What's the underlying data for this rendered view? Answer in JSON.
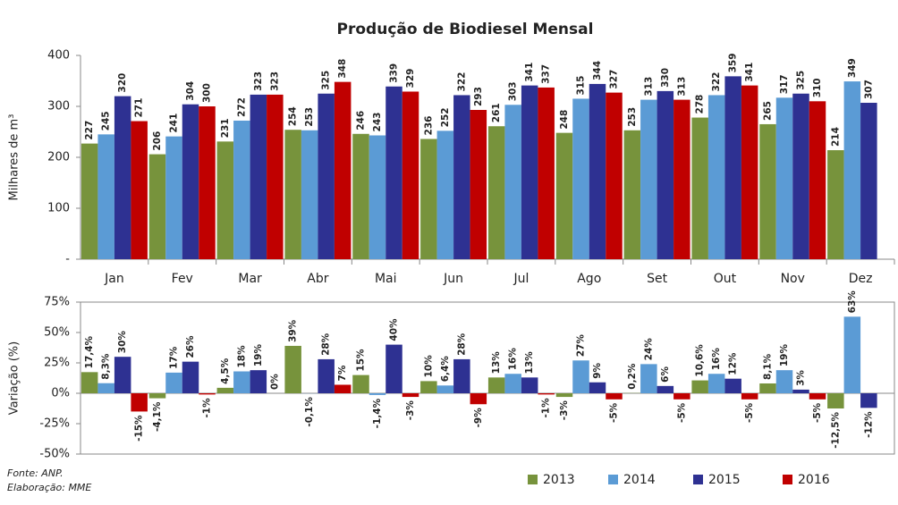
{
  "chart_data": [
    {
      "type": "bar",
      "title": "Produção de Biodiesel Mensal",
      "y_label": "Milhares de m³",
      "categories": [
        "Jan",
        "Fev",
        "Mar",
        "Abr",
        "Mai",
        "Jun",
        "Jul",
        "Ago",
        "Set",
        "Out",
        "Nov",
        "Dez"
      ],
      "series": [
        {
          "name": "2013",
          "color": "#77933c",
          "values": [
            227,
            206,
            231,
            254,
            246,
            236,
            261,
            248,
            253,
            278,
            265,
            214
          ]
        },
        {
          "name": "2014",
          "color": "#5b9bd5",
          "values": [
            245,
            241,
            272,
            253,
            243,
            252,
            303,
            315,
            313,
            322,
            317,
            349
          ]
        },
        {
          "name": "2015",
          "color": "#2e3192",
          "values": [
            320,
            304,
            323,
            325,
            339,
            322,
            341,
            344,
            330,
            359,
            325,
            307
          ]
        },
        {
          "name": "2016",
          "color": "#c00000",
          "values": [
            271,
            300,
            323,
            348,
            329,
            293,
            337,
            327,
            313,
            341,
            310,
            null
          ]
        }
      ],
      "ylim": [
        0,
        400
      ],
      "yticks": [
        {
          "value": 0,
          "label": "-"
        },
        100,
        200,
        300,
        400
      ],
      "legend": "bottom"
    },
    {
      "type": "bar",
      "y_label": "Variação (%)",
      "series": [
        {
          "values": [
            17.4,
            -4.1,
            4.5,
            39,
            15,
            10,
            13,
            -3,
            0.2,
            10.6,
            8.1,
            -12.5
          ],
          "value_labels": [
            "17,4%",
            "-4,1%",
            "4,5%",
            "39%",
            "15%",
            "10%",
            "13%",
            "-3%",
            "0,2%",
            "10,6%",
            "8,1%",
            "-12,5%"
          ]
        },
        {
          "values": [
            8.3,
            17,
            18,
            -0.1,
            -1.4,
            6.4,
            16,
            27,
            24,
            16,
            19,
            63
          ],
          "value_labels": [
            "8,3%",
            "17%",
            "18%",
            "-0,1%",
            "-1,4%",
            "6,4%",
            "16%",
            "27%",
            "24%",
            "16%",
            "19%",
            "63%"
          ]
        },
        {
          "values": [
            30,
            26,
            19,
            28,
            40,
            28,
            13,
            9,
            6,
            12,
            3,
            -12
          ],
          "value_labels": [
            "30%",
            "26%",
            "19%",
            "28%",
            "40%",
            "28%",
            "13%",
            "9%",
            "6%",
            "12%",
            "3%",
            "-12%"
          ]
        },
        {
          "values": [
            -15,
            -1,
            0,
            7,
            -3,
            -9,
            -1,
            -5,
            -5,
            -5,
            -5,
            null
          ],
          "value_labels": [
            "-15%",
            "-1%",
            "0%",
            "7%",
            "-3%",
            "-9%",
            "-1%",
            "-5%",
            "-5%",
            "-5%",
            "-5%",
            null
          ]
        }
      ],
      "ylim": [
        -50,
        75
      ],
      "yticks": [
        {
          "value": -50,
          "label": "-50%"
        },
        {
          "value": -25,
          "label": "-25%"
        },
        {
          "value": 0,
          "label": "0%"
        },
        {
          "value": 25,
          "label": "25%"
        },
        {
          "value": 50,
          "label": "50%"
        },
        {
          "value": 75,
          "label": "75%"
        }
      ]
    }
  ],
  "source": [
    "Fonte: ANP.",
    "Elaboração: MME"
  ]
}
